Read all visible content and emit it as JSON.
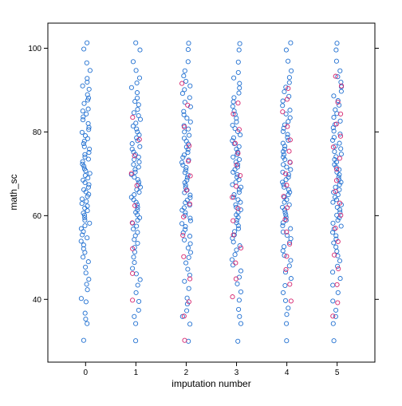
{
  "chart_data": {
    "type": "scatter",
    "title": "",
    "xlabel": "imputation number",
    "ylabel": "math_sc",
    "xlim": [
      -0.75,
      5.75
    ],
    "ylim": [
      25,
      106
    ],
    "x_ticks": [
      0,
      1,
      2,
      3,
      4,
      5
    ],
    "x_tick_labels": [
      "0",
      "1",
      "2",
      "3",
      "4",
      "5"
    ],
    "y_ticks": [
      40,
      60,
      80,
      100
    ],
    "y_tick_labels": [
      "40",
      "60",
      "80",
      "100"
    ],
    "grid": false,
    "legend": "none",
    "colors": {
      "observed": "#1f6fd1",
      "imputed": "#d6246e"
    },
    "groups": [
      {
        "x": 0,
        "observed": [
          101.3,
          99.8,
          96.5,
          94.7,
          92.8,
          91.9,
          91.0,
          90.2,
          88.9,
          88.1,
          87.6,
          86.8,
          85.5,
          85.0,
          84.3,
          83.6,
          82.9,
          82.0,
          81.1,
          80.6,
          79.9,
          79.1,
          78.4,
          77.8,
          77.2,
          76.5,
          75.9,
          75.1,
          74.6,
          74.0,
          73.5,
          72.9,
          72.3,
          71.8,
          71.2,
          70.7,
          70.1,
          69.6,
          69.0,
          68.5,
          67.9,
          67.4,
          66.8,
          66.2,
          65.7,
          65.1,
          64.6,
          64.0,
          63.4,
          62.9,
          62.3,
          61.8,
          61.2,
          60.6,
          60.1,
          59.5,
          58.9,
          58.2,
          57.6,
          56.9,
          56.2,
          55.4,
          54.7,
          53.9,
          53.0,
          52.1,
          51.2,
          50.1,
          49.0,
          47.7,
          46.3,
          44.8,
          43.6,
          42.3,
          40.2,
          39.4,
          36.7,
          35.3,
          34.2,
          30.2
        ],
        "imputed": []
      },
      {
        "x": 1,
        "observed": [
          101.3,
          99.6,
          96.8,
          94.7,
          92.9,
          91.7,
          90.6,
          89.4,
          88.1,
          87.3,
          86.5,
          85.4,
          84.6,
          83.9,
          83.0,
          82.1,
          81.4,
          80.7,
          80.0,
          79.3,
          78.6,
          77.9,
          77.2,
          76.5,
          75.9,
          75.2,
          74.6,
          74.0,
          73.4,
          72.8,
          72.2,
          71.6,
          71.0,
          70.4,
          69.8,
          69.2,
          68.6,
          68.0,
          67.4,
          66.8,
          66.2,
          65.6,
          65.0,
          64.4,
          63.8,
          63.2,
          62.6,
          62.0,
          61.4,
          60.8,
          60.2,
          59.5,
          58.9,
          58.2,
          57.5,
          56.8,
          56.0,
          55.2,
          54.3,
          53.4,
          52.4,
          51.3,
          50.1,
          48.8,
          47.4,
          46.1,
          44.7,
          43.4,
          41.6,
          39.5,
          37.4,
          35.9,
          34.2,
          30.1
        ],
        "imputed": [
          83.5,
          78.2,
          74.3,
          70.1,
          67.2,
          62.4,
          58.3,
          52.1,
          46.2,
          39.8
        ]
      },
      {
        "x": 2,
        "observed": [
          101.2,
          99.7,
          96.8,
          94.6,
          93.4,
          92.1,
          91.0,
          90.1,
          89.2,
          88.2,
          87.1,
          86.0,
          84.9,
          84.1,
          83.3,
          82.4,
          81.5,
          80.7,
          80.0,
          79.2,
          78.5,
          77.8,
          77.1,
          76.4,
          75.8,
          75.1,
          74.5,
          73.9,
          73.3,
          72.7,
          72.1,
          71.5,
          70.9,
          70.3,
          69.7,
          69.1,
          68.5,
          67.9,
          67.3,
          66.7,
          66.1,
          65.5,
          64.9,
          64.3,
          63.7,
          63.1,
          62.5,
          61.9,
          61.3,
          60.7,
          60.1,
          59.4,
          58.8,
          58.1,
          57.4,
          56.7,
          55.9,
          55.1,
          54.2,
          53.3,
          52.3,
          51.2,
          50.0,
          48.7,
          47.2,
          45.8,
          44.3,
          42.6,
          40.3,
          38.9,
          37.3,
          35.9,
          34.1,
          30.0
        ],
        "imputed": [
          91.6,
          86.4,
          81.2,
          76.7,
          73.0,
          69.5,
          66.1,
          62.8,
          59.7,
          55.3,
          50.2,
          44.9,
          39.4,
          36.0,
          30.2
        ]
      },
      {
        "x": 3,
        "observed": [
          101.1,
          99.6,
          96.7,
          94.2,
          92.9,
          91.6,
          90.5,
          89.3,
          88.2,
          87.2,
          86.1,
          85.0,
          84.2,
          83.3,
          82.4,
          81.6,
          80.8,
          80.1,
          79.3,
          78.6,
          77.9,
          77.2,
          76.5,
          75.9,
          75.2,
          74.6,
          74.0,
          73.4,
          72.8,
          72.2,
          71.6,
          71.0,
          70.4,
          69.8,
          69.2,
          68.6,
          68.0,
          67.4,
          66.8,
          66.2,
          65.6,
          65.0,
          64.4,
          63.8,
          63.2,
          62.6,
          62.0,
          61.4,
          60.8,
          60.2,
          59.6,
          58.9,
          58.3,
          57.6,
          56.9,
          56.2,
          55.4,
          54.6,
          53.7,
          52.8,
          51.8,
          50.7,
          49.5,
          48.2,
          46.8,
          45.3,
          43.7,
          41.8,
          39.8,
          37.6,
          35.9,
          34.2,
          30.0
        ],
        "imputed": [
          86.9,
          84.3,
          80.6,
          77.3,
          74.9,
          72.1,
          69.6,
          67.0,
          64.4,
          61.7,
          58.8,
          55.4,
          52.3,
          48.7,
          44.9,
          40.6
        ]
      },
      {
        "x": 4,
        "observed": [
          101.3,
          99.6,
          96.9,
          94.6,
          93.0,
          91.8,
          90.7,
          89.6,
          88.5,
          87.4,
          86.3,
          85.2,
          84.3,
          83.4,
          82.5,
          81.7,
          80.9,
          80.1,
          79.4,
          78.7,
          78.0,
          77.3,
          76.6,
          75.9,
          75.3,
          74.6,
          74.0,
          73.4,
          72.8,
          72.2,
          71.6,
          71.0,
          70.4,
          69.8,
          69.2,
          68.6,
          68.0,
          67.4,
          66.8,
          66.2,
          65.6,
          65.0,
          64.4,
          63.8,
          63.2,
          62.6,
          62.0,
          61.4,
          60.8,
          60.2,
          59.6,
          58.9,
          58.3,
          57.6,
          56.9,
          56.1,
          55.3,
          54.5,
          53.6,
          52.6,
          51.6,
          50.5,
          49.3,
          48.0,
          46.5,
          45.0,
          43.3,
          41.6,
          39.7,
          37.9,
          36.4,
          34.2,
          30.1
        ],
        "imputed": [
          90.4,
          87.8,
          84.8,
          81.3,
          78.1,
          75.4,
          72.7,
          70.0,
          67.3,
          64.6,
          61.9,
          59.1,
          56.1,
          53.2,
          50.3,
          47.1,
          43.6,
          39.6
        ]
      },
      {
        "x": 5,
        "observed": [
          101.2,
          99.6,
          96.9,
          94.6,
          93.2,
          91.9,
          90.8,
          89.7,
          88.6,
          87.5,
          86.4,
          85.3,
          84.4,
          83.5,
          82.6,
          81.8,
          81.0,
          80.2,
          79.5,
          78.7,
          78.0,
          77.3,
          76.6,
          76.0,
          75.3,
          74.7,
          74.1,
          73.4,
          72.8,
          72.2,
          71.6,
          71.0,
          70.4,
          69.8,
          69.2,
          68.6,
          68.0,
          67.4,
          66.8,
          66.2,
          65.6,
          65.0,
          64.4,
          63.8,
          63.2,
          62.6,
          62.0,
          61.4,
          60.8,
          60.1,
          59.5,
          58.9,
          58.2,
          57.5,
          56.8,
          56.0,
          55.2,
          54.4,
          53.5,
          52.5,
          51.5,
          50.4,
          49.2,
          47.9,
          46.5,
          45.0,
          43.4,
          41.6,
          39.6,
          37.4,
          35.9,
          34.2,
          30.1
        ],
        "imputed": [
          93.3,
          91.0,
          87.1,
          84.3,
          81.9,
          79.0,
          76.4,
          73.7,
          71.1,
          68.4,
          65.8,
          63.0,
          60.1,
          57.0,
          53.8,
          50.6,
          47.3,
          43.5,
          39.2,
          36.0
        ]
      }
    ]
  }
}
